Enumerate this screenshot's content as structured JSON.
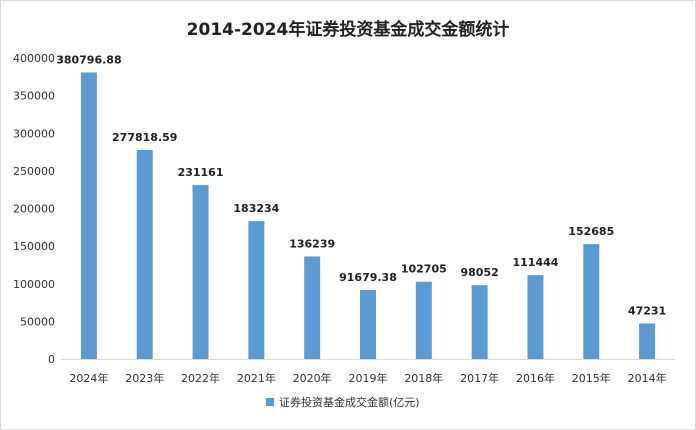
{
  "chart_data": {
    "type": "bar",
    "title": "2014-2024年证券投资基金成交金额统计",
    "categories": [
      "2024年",
      "2023年",
      "2022年",
      "2021年",
      "2020年",
      "2019年",
      "2018年",
      "2017年",
      "2016年",
      "2015年",
      "2014年"
    ],
    "series": [
      {
        "name": "证券投资基金成交金额(亿元)",
        "values": [
          380796.88,
          277818.59,
          231161,
          183234,
          136239,
          91679.38,
          102705,
          98052,
          111444,
          152685,
          47231
        ],
        "labels": [
          "380796.88",
          "277818.59",
          "231161",
          "183234",
          "136239",
          "91679.38",
          "102705",
          "98052",
          "111444",
          "152685",
          "47231"
        ]
      }
    ],
    "ylim": [
      0,
      400000
    ],
    "yticks": [
      "0",
      "50000",
      "100000",
      "150000",
      "200000",
      "250000",
      "300000",
      "350000",
      "400000"
    ],
    "grid": false,
    "legend_position": "bottom",
    "bar_color": "#5b9bd5"
  }
}
